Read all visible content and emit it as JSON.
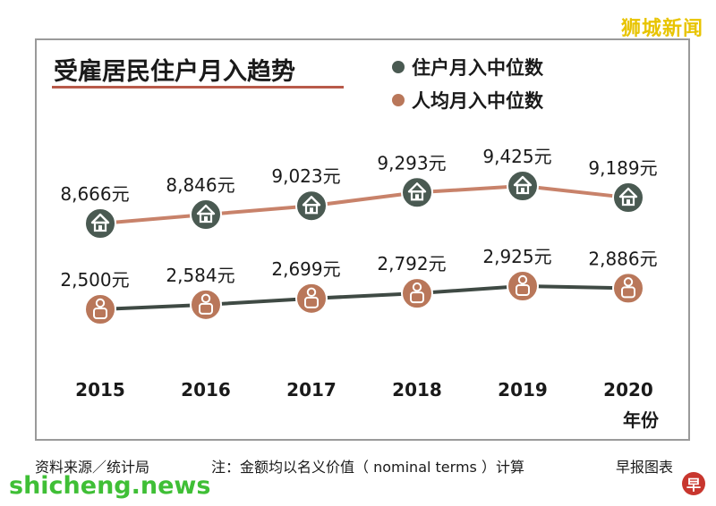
{
  "brand": {
    "top_right": "狮城新闻",
    "site": "shicheng.news",
    "corner_icon": "早"
  },
  "chart_data": {
    "type": "line",
    "title": "受雇居民住户月入趋势",
    "categories": [
      "2015",
      "2016",
      "2017",
      "2018",
      "2019",
      "2020"
    ],
    "x_unit": "年份",
    "series": [
      {
        "name": "住户月入中位数",
        "color": "#4a5a52",
        "icon": "house-icon",
        "line_color": "#c8826a",
        "values": [
          8666,
          8846,
          9023,
          9293,
          9425,
          9189
        ],
        "labels": [
          "8,666元",
          "8,846元",
          "9,023元",
          "9,293元",
          "9,425元",
          "9,189元"
        ]
      },
      {
        "name": "人均月入中位数",
        "color": "#b9775a",
        "icon": "person-icon",
        "line_color": "#3f4a44",
        "values": [
          2500,
          2584,
          2699,
          2792,
          2925,
          2886
        ],
        "labels": [
          "2,500元",
          "2,584元",
          "2,699元",
          "2,792元",
          "2,925元",
          "2,886元"
        ]
      }
    ]
  },
  "footer": {
    "source": "资料来源／统计局",
    "note": "注：金额均以名义价值（ nominal terms ）计算",
    "credit": "早报图表"
  }
}
